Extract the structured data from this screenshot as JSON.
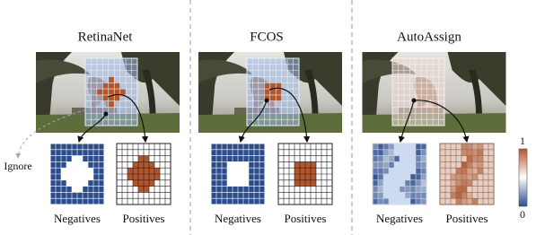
{
  "panels": [
    {
      "title": "RetinaNet",
      "ignore_label": "Ignore",
      "negatives_label": "Negatives",
      "positives_label": "Positives"
    },
    {
      "title": "FCOS",
      "negatives_label": "Negatives",
      "positives_label": "Positives"
    },
    {
      "title": "AutoAssign",
      "negatives_label": "Negatives",
      "positives_label": "Positives"
    }
  ],
  "colorbar": {
    "max_label": 1,
    "min_label": 0
  }
}
